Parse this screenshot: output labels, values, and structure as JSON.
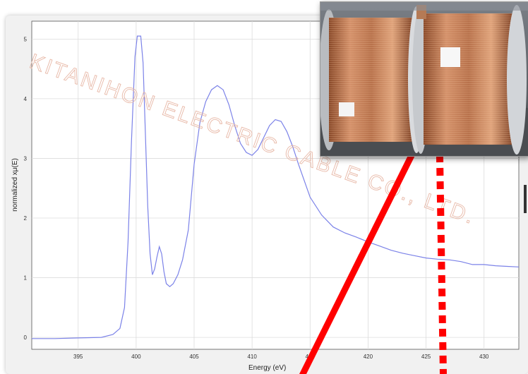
{
  "chart_data": {
    "type": "line",
    "title": "",
    "xlabel": "Energy (eV)",
    "ylabel": "normalized xμ(E)",
    "xlim": [
      391,
      433
    ],
    "ylim": [
      -0.2,
      5.3
    ],
    "xticks": [
      395,
      400,
      405,
      410,
      415,
      420,
      425,
      430
    ],
    "yticks": [
      0,
      1,
      2,
      3,
      4,
      5
    ],
    "grid": true,
    "series_color": "#7b82e8",
    "series": [
      {
        "x": [
          391,
          393,
          395,
          397,
          398,
          398.6,
          399.0,
          399.3,
          399.6,
          399.9,
          400.1,
          400.4,
          400.6,
          400.8,
          401.0,
          401.2,
          401.4,
          401.6,
          401.8,
          402.0,
          402.2,
          402.4,
          402.6,
          402.9,
          403.2,
          403.6,
          404.0,
          404.5,
          405.0,
          405.5,
          406.0,
          406.5,
          407.0,
          407.5,
          408.0,
          408.5,
          409.0,
          409.5,
          410.0,
          410.5,
          411.0,
          411.5,
          412.0,
          412.5,
          413.0,
          413.5,
          414.0,
          415.0,
          416.0,
          417.0,
          418.0,
          419.0,
          420.0,
          421.0,
          422.0,
          423.0,
          424.0,
          425.0,
          426.0,
          427.0,
          428.0,
          429.0,
          430.0,
          431.0,
          432.0,
          433.0
        ],
        "y": [
          -0.02,
          -0.02,
          -0.01,
          0.0,
          0.05,
          0.15,
          0.5,
          1.6,
          3.3,
          4.7,
          5.05,
          5.05,
          4.6,
          3.4,
          2.2,
          1.4,
          1.05,
          1.15,
          1.35,
          1.52,
          1.4,
          1.1,
          0.9,
          0.85,
          0.9,
          1.05,
          1.3,
          1.8,
          2.9,
          3.6,
          3.95,
          4.15,
          4.22,
          4.15,
          3.9,
          3.55,
          3.25,
          3.1,
          3.05,
          3.15,
          3.35,
          3.55,
          3.65,
          3.62,
          3.45,
          3.2,
          2.9,
          2.35,
          2.05,
          1.85,
          1.75,
          1.68,
          1.6,
          1.53,
          1.46,
          1.41,
          1.37,
          1.33,
          1.31,
          1.3,
          1.27,
          1.22,
          1.22,
          1.2,
          1.19,
          1.18
        ]
      }
    ]
  },
  "watermark": {
    "text": "KITANIHON ELECTRIC CABLE CO., LTD."
  },
  "photo": {
    "subject": "copper-wire-spools"
  },
  "annotations": {
    "line_color": "#ff0000"
  }
}
